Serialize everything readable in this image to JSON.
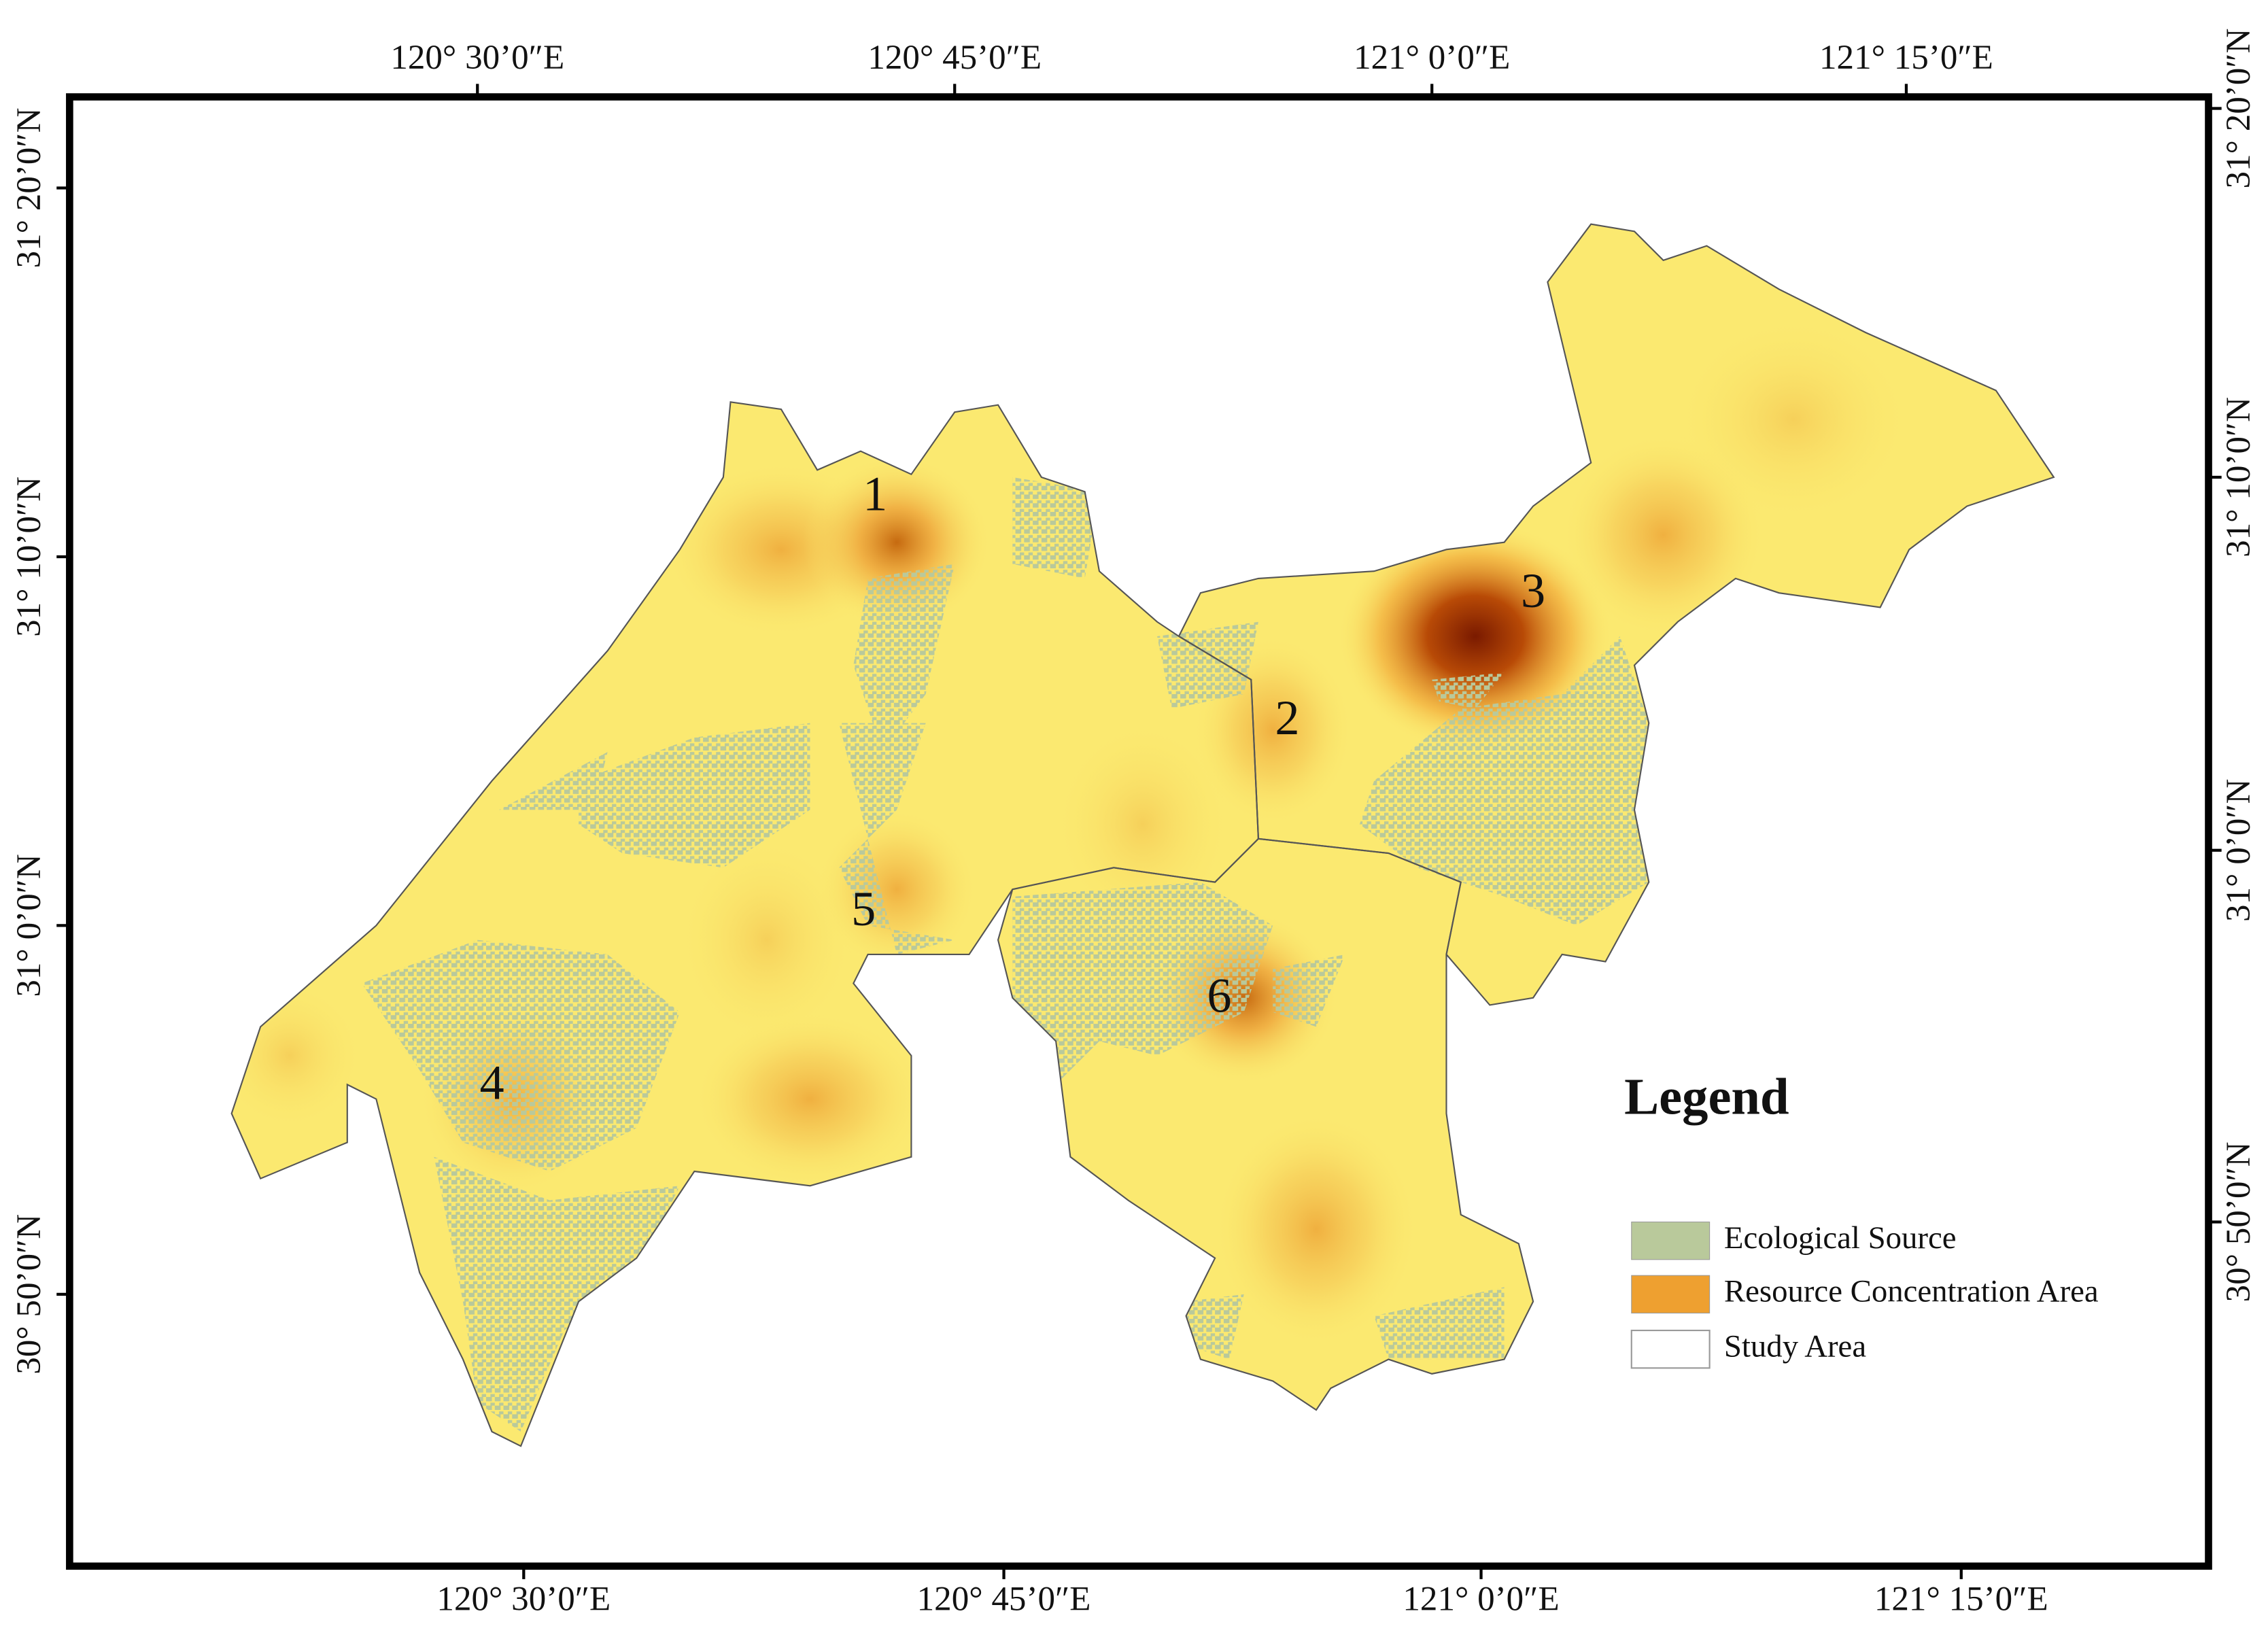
{
  "map": {
    "top_labels": [
      "120° 30’0″E",
      "120° 45’0″E",
      "121° 0’0″E",
      "121° 15’0″E"
    ],
    "bottom_labels": [
      "120° 30’0″E",
      "120° 45’0″E",
      "121° 0’0″E",
      "121° 15’0″E"
    ],
    "left_labels": [
      "31° 20’0″N",
      "31° 10’0″N",
      "31° 0’0″N",
      "30° 50’0″N"
    ],
    "right_labels": [
      "31° 20’0″N",
      "31° 10’0″N",
      "31° 0’0″N",
      "30° 50’0″N"
    ],
    "area_labels": [
      "1",
      "2",
      "3",
      "4",
      "5",
      "6"
    ],
    "legend": {
      "title": "Legend",
      "items": [
        "Ecological Source",
        "Resource Concentration Area",
        "Study Area"
      ]
    }
  }
}
